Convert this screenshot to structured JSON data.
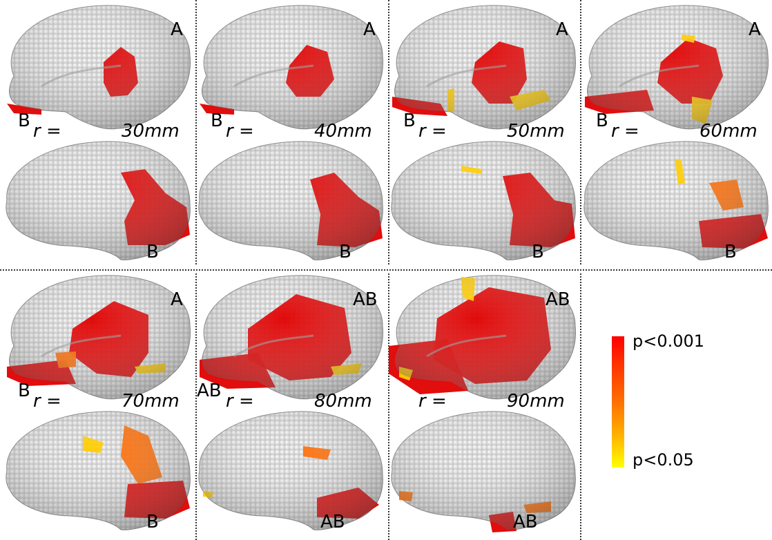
{
  "legend": {
    "top_label": "p<0.001",
    "bottom_label": "p<0.05",
    "colors": {
      "strong": "#e00000",
      "mid": "#ff6a00",
      "weak": "#ffcc00",
      "surface": "#c9c9c9"
    }
  },
  "r_symbol": "r =",
  "panels": [
    {
      "radius": "30mm",
      "lateral_label": "A",
      "side_label": "B",
      "medial_label": "B"
    },
    {
      "radius": "40mm",
      "lateral_label": "A",
      "side_label": "B",
      "medial_label": "B"
    },
    {
      "radius": "50mm",
      "lateral_label": "A",
      "side_label": "B",
      "medial_label": "B"
    },
    {
      "radius": "60mm",
      "lateral_label": "A",
      "side_label": "B",
      "medial_label": "B"
    },
    {
      "radius": "70mm",
      "lateral_label": "A",
      "side_label": "B",
      "medial_label": "B"
    },
    {
      "radius": "80mm",
      "lateral_label": "AB",
      "side_label": "AB",
      "medial_label": "AB"
    },
    {
      "radius": "90mm",
      "lateral_label": "AB",
      "side_label": "",
      "medial_label": "AB"
    }
  ]
}
